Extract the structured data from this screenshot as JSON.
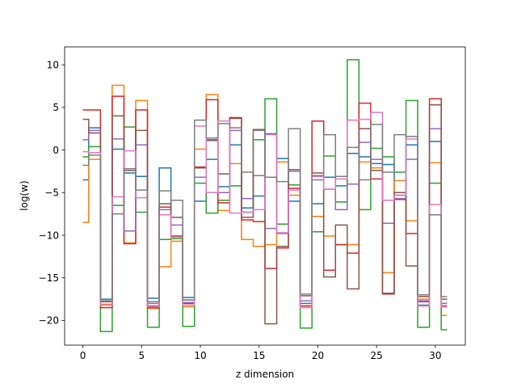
{
  "chart_data": {
    "type": "line",
    "drawstyle": "steps-mid",
    "title": "",
    "xlabel": "z dimension",
    "ylabel": "log(w)",
    "xlim": [
      -1.55,
      32.55
    ],
    "ylim": [
      -22.9,
      12.1
    ],
    "xticks": [
      0,
      5,
      10,
      15,
      20,
      25,
      30
    ],
    "yticks": [
      -20,
      -15,
      -10,
      -5,
      0,
      5,
      10
    ],
    "x": [
      0,
      1,
      2,
      3,
      4,
      5,
      6,
      7,
      8,
      9,
      10,
      11,
      12,
      13,
      14,
      15,
      16,
      17,
      18,
      19,
      20,
      21,
      22,
      23,
      24,
      25,
      26,
      27,
      28,
      29,
      30,
      31
    ],
    "series": [
      {
        "color": "#1f77b4",
        "values": [
          -3.5,
          2.6,
          -17.5,
          0.1,
          -2.7,
          -3.1,
          -17.4,
          -2.1,
          -10.2,
          -17.3,
          -6.0,
          -1.1,
          -4.3,
          0.6,
          -6.8,
          -5.4,
          1.9,
          -1.0,
          -6.0,
          -18.0,
          -6.3,
          -3.2,
          -4.2,
          -0.4,
          -0.8,
          -1.6,
          -1.7,
          -5.3,
          0.6,
          -18.2,
          1.0,
          -18.0
        ]
      },
      {
        "color": "#ff7f0e",
        "values": [
          -8.5,
          -1.1,
          -18.1,
          7.6,
          -10.9,
          5.8,
          -18.6,
          -13.7,
          -10.7,
          -18.4,
          0.1,
          6.5,
          -7.1,
          -1.6,
          -10.5,
          -11.3,
          -11.1,
          -1.4,
          -5.3,
          -18.3,
          -7.8,
          -10.1,
          -11.1,
          -11.1,
          -1.4,
          -2.1,
          -14.4,
          -3.6,
          -8.3,
          -17.5,
          -1.5,
          -19.4
        ]
      },
      {
        "color": "#2ca02c",
        "values": [
          -0.8,
          0.4,
          -21.3,
          -6.5,
          2.7,
          -7.3,
          -20.8,
          -10.5,
          -10.4,
          -20.7,
          -3.9,
          -7.4,
          -5.9,
          -4.2,
          -7.3,
          1.2,
          6.0,
          -8.7,
          -4.1,
          -20.9,
          -9.6,
          -0.7,
          -6.1,
          10.6,
          -7.0,
          0.2,
          -0.8,
          -2.6,
          5.8,
          -20.8,
          -3.9,
          -21.1
        ]
      },
      {
        "color": "#d62728",
        "values": [
          4.7,
          4.7,
          -18.5,
          6.3,
          -11.0,
          4.7,
          -18.5,
          -6.7,
          -10.1,
          -18.0,
          -2.0,
          5.9,
          -6.2,
          3.8,
          -8.2,
          -8.4,
          -13.9,
          -11.5,
          -4.5,
          -18.3,
          3.4,
          -14.1,
          -11.1,
          -12.1,
          5.5,
          -3.4,
          -16.9,
          -5.8,
          -9.8,
          -17.8,
          6.0,
          -18.3
        ]
      },
      {
        "color": "#9467bd",
        "values": [
          1.2,
          2.3,
          -17.8,
          1.3,
          -9.5,
          0.6,
          -18.0,
          -7.0,
          -8.8,
          -17.9,
          -3.2,
          1.1,
          -5.0,
          2.3,
          -5.7,
          -3.0,
          -9.2,
          -9.8,
          -2.5,
          -17.7,
          -3.5,
          -4.6,
          -7.0,
          -4.0,
          0.9,
          -1.1,
          -8.6,
          -5.7,
          -1.1,
          -17.7,
          2.5,
          -18.0
        ]
      },
      {
        "color": "#8c564b",
        "values": [
          3.6,
          2.0,
          -17.8,
          4.0,
          -2.4,
          2.3,
          -18.3,
          -6.3,
          -7.9,
          -17.6,
          -2.1,
          1.2,
          -2.8,
          3.7,
          -7.9,
          2.4,
          -20.4,
          -11.3,
          -2.3,
          -17.1,
          -2.7,
          -14.9,
          -8.8,
          -16.3,
          2.5,
          -2.4,
          -16.8,
          -5.0,
          -13.6,
          -17.2,
          5.3,
          -17.5
        ]
      },
      {
        "color": "#e377c2",
        "values": [
          -0.2,
          -0.3,
          -18.2,
          -5.5,
          -0.1,
          -5.6,
          -18.4,
          -7.6,
          -10.2,
          -18.2,
          2.8,
          -5.0,
          3.4,
          -7.4,
          -7.3,
          -7.0,
          1.8,
          -9.7,
          -4.7,
          -18.5,
          -3.1,
          -4.6,
          -3.4,
          3.5,
          3.6,
          4.4,
          -5.9,
          -5.3,
          1.3,
          -18.3,
          -6.4,
          -18.4
        ]
      },
      {
        "color": "#7f7f7f",
        "values": [
          -1.8,
          -0.6,
          -17.7,
          -7.5,
          -2.2,
          -4.7,
          -17.8,
          -4.8,
          -5.9,
          -17.6,
          3.5,
          1.4,
          3.1,
          2.6,
          -2.6,
          2.3,
          -3.2,
          -3.7,
          2.5,
          -16.9,
          -3.0,
          1.8,
          -3.1,
          0.3,
          -3.5,
          3.0,
          -2.6,
          1.8,
          1.6,
          -17.0,
          -7.6,
          -17.2
        ]
      }
    ]
  }
}
